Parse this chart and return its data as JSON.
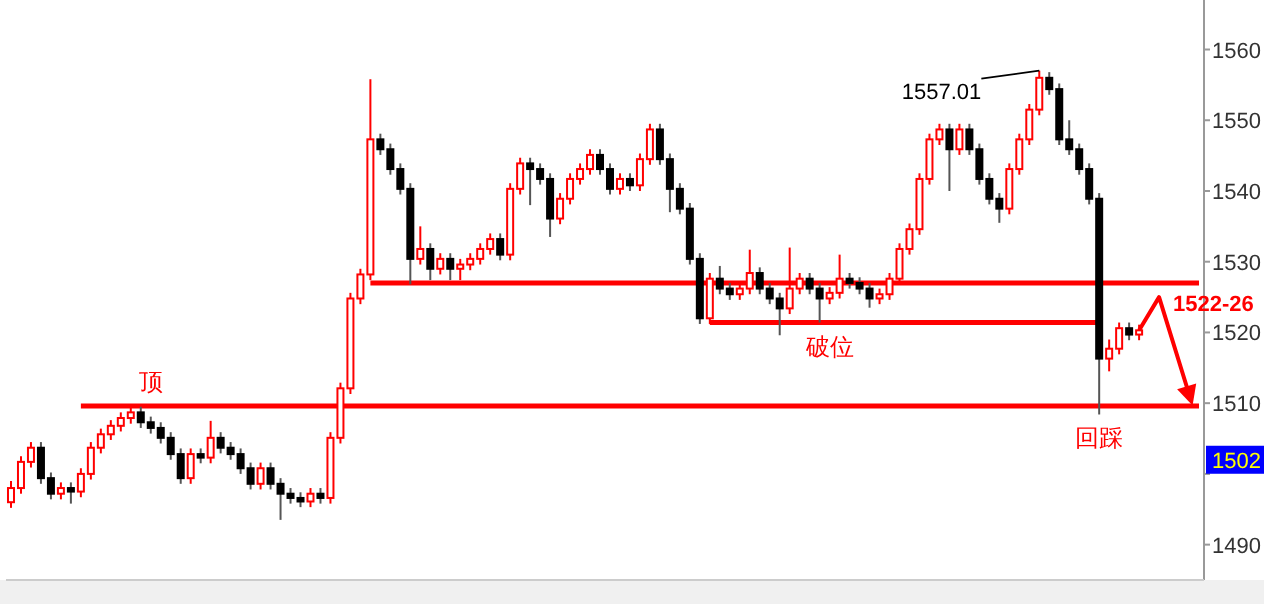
{
  "chart_data": {
    "type": "candlestick",
    "grid": false,
    "categories": [
      null,
      null,
      null,
      null,
      null,
      null,
      null,
      null,
      null,
      null,
      null,
      null,
      null,
      null,
      null,
      null,
      null,
      null,
      null,
      null,
      null,
      null,
      null,
      null,
      null,
      null,
      null,
      null,
      null,
      null,
      null,
      null,
      null,
      null,
      null,
      null,
      null,
      null,
      null,
      null,
      null,
      null,
      null,
      null,
      null,
      null,
      null,
      null,
      null,
      null,
      null,
      null,
      null,
      null,
      null,
      null,
      null,
      null,
      null,
      null,
      null,
      null,
      null,
      null,
      null,
      null,
      null,
      null,
      null,
      null,
      null,
      null,
      null,
      null,
      null,
      null,
      null,
      null,
      null,
      null,
      null,
      null,
      null,
      null,
      null,
      null,
      null,
      null,
      null,
      null,
      null,
      null,
      null,
      null,
      null,
      null,
      null,
      null,
      null,
      null,
      null,
      null,
      null,
      null,
      null,
      null,
      null,
      null,
      null,
      null,
      null,
      null,
      null,
      null,
      null,
      null,
      null,
      null,
      null,
      null
    ],
    "ylim": [
      1485,
      1567
    ],
    "yticks": [
      1490,
      {
        "value": 1500,
        "label": null
      },
      1510,
      1520,
      1530,
      1540,
      1550,
      1560
    ],
    "ohlc": [
      [
        1496.0,
        1499.0,
        1495.2,
        1498.0
      ],
      [
        1498.0,
        1502.5,
        1497.2,
        1501.7
      ],
      [
        1501.7,
        1504.5,
        1500.9,
        1503.7
      ],
      [
        1503.7,
        1504.5,
        1498.6,
        1499.4
      ],
      [
        1499.4,
        1500.2,
        1496.4,
        1497.2
      ],
      [
        1497.2,
        1498.8,
        1496.4,
        1498.0
      ],
      [
        1498.0,
        1498.8,
        1495.8,
        1497.5
      ],
      [
        1497.5,
        1500.8,
        1496.7,
        1500.0
      ],
      [
        1500.0,
        1504.5,
        1499.2,
        1503.7
      ],
      [
        1503.7,
        1506.4,
        1502.9,
        1505.6
      ],
      [
        1505.6,
        1507.6,
        1504.8,
        1506.8
      ],
      [
        1506.8,
        1508.7,
        1506.0,
        1507.9
      ],
      [
        1507.9,
        1509.5,
        1507.1,
        1508.7
      ],
      [
        1508.7,
        1509.5,
        1506.5,
        1507.3
      ],
      [
        1507.3,
        1508.1,
        1505.7,
        1506.5
      ],
      [
        1506.5,
        1507.3,
        1504.3,
        1505.1
      ],
      [
        1505.1,
        1505.9,
        1502.0,
        1502.8
      ],
      [
        1502.8,
        1503.6,
        1498.6,
        1499.4
      ],
      [
        1499.4,
        1503.6,
        1498.6,
        1502.8
      ],
      [
        1502.8,
        1503.6,
        1501.5,
        1502.3
      ],
      [
        1502.3,
        1507.5,
        1501.5,
        1505.1
      ],
      [
        1505.1,
        1505.9,
        1502.9,
        1503.7
      ],
      [
        1503.7,
        1504.5,
        1502.0,
        1502.8
      ],
      [
        1502.8,
        1503.6,
        1500.0,
        1500.8
      ],
      [
        1500.8,
        1501.6,
        1497.8,
        1498.6
      ],
      [
        1498.6,
        1501.6,
        1497.8,
        1500.8
      ],
      [
        1500.8,
        1501.6,
        1497.8,
        1498.6
      ],
      [
        1498.6,
        1499.4,
        1493.5,
        1497.2
      ],
      [
        1497.2,
        1498.0,
        1495.8,
        1496.6
      ],
      [
        1496.6,
        1497.4,
        1495.3,
        1496.1
      ],
      [
        1496.1,
        1498.0,
        1495.3,
        1497.2
      ],
      [
        1497.2,
        1498.0,
        1495.8,
        1496.6
      ],
      [
        1496.6,
        1505.9,
        1495.8,
        1505.1
      ],
      [
        1505.1,
        1512.9,
        1504.3,
        1512.1
      ],
      [
        1512.1,
        1525.6,
        1511.3,
        1524.8
      ],
      [
        1524.8,
        1529.0,
        1524.0,
        1528.2
      ],
      [
        1528.2,
        1555.8,
        1527.4,
        1547.3
      ],
      [
        1547.3,
        1548.1,
        1545.1,
        1545.9
      ],
      [
        1545.9,
        1546.7,
        1542.3,
        1543.1
      ],
      [
        1543.1,
        1543.9,
        1539.5,
        1540.3
      ],
      [
        1540.3,
        1541.1,
        1526.8,
        1530.4
      ],
      [
        1530.4,
        1535.0,
        1529.6,
        1531.8
      ],
      [
        1531.8,
        1532.6,
        1527.4,
        1529.0
      ],
      [
        1529.0,
        1531.2,
        1528.2,
        1530.4
      ],
      [
        1530.4,
        1531.2,
        1527.4,
        1529.0
      ],
      [
        1529.0,
        1530.4,
        1527.4,
        1529.6
      ],
      [
        1529.6,
        1531.2,
        1528.8,
        1530.4
      ],
      [
        1530.4,
        1532.6,
        1529.6,
        1531.8
      ],
      [
        1531.8,
        1534.0,
        1531.0,
        1533.2
      ],
      [
        1533.2,
        1534.0,
        1530.2,
        1531.0
      ],
      [
        1531.0,
        1541.1,
        1530.2,
        1540.3
      ],
      [
        1540.3,
        1544.7,
        1539.5,
        1543.9
      ],
      [
        1543.9,
        1544.7,
        1538.0,
        1543.1
      ],
      [
        1543.1,
        1543.9,
        1540.9,
        1541.7
      ],
      [
        1541.7,
        1542.5,
        1533.5,
        1536.1
      ],
      [
        1536.1,
        1539.7,
        1535.3,
        1538.9
      ],
      [
        1538.9,
        1542.5,
        1538.1,
        1541.7
      ],
      [
        1541.7,
        1543.9,
        1540.9,
        1543.1
      ],
      [
        1543.1,
        1545.9,
        1542.3,
        1545.1
      ],
      [
        1545.1,
        1545.9,
        1542.3,
        1543.1
      ],
      [
        1543.1,
        1543.9,
        1539.5,
        1540.3
      ],
      [
        1540.3,
        1542.5,
        1539.5,
        1541.7
      ],
      [
        1541.7,
        1542.5,
        1540.0,
        1540.8
      ],
      [
        1540.8,
        1545.3,
        1540.0,
        1544.5
      ],
      [
        1544.5,
        1549.5,
        1543.7,
        1548.7
      ],
      [
        1548.7,
        1549.5,
        1543.7,
        1544.5
      ],
      [
        1544.5,
        1545.3,
        1537.0,
        1540.3
      ],
      [
        1540.3,
        1541.1,
        1536.7,
        1537.5
      ],
      [
        1537.5,
        1538.3,
        1529.6,
        1530.4
      ],
      [
        1530.4,
        1531.2,
        1521.2,
        1522.0
      ],
      [
        1522.0,
        1528.4,
        1521.2,
        1527.6
      ],
      [
        1527.6,
        1529.4,
        1525.4,
        1526.2
      ],
      [
        1526.2,
        1527.0,
        1524.6,
        1525.4
      ],
      [
        1525.4,
        1527.0,
        1524.6,
        1526.2
      ],
      [
        1526.2,
        1531.7,
        1525.4,
        1528.4
      ],
      [
        1528.4,
        1529.2,
        1525.4,
        1526.2
      ],
      [
        1526.2,
        1527.0,
        1524.0,
        1524.8
      ],
      [
        1524.8,
        1525.6,
        1519.6,
        1523.4
      ],
      [
        1523.4,
        1532.0,
        1522.6,
        1526.2
      ],
      [
        1526.2,
        1528.4,
        1525.4,
        1527.6
      ],
      [
        1527.6,
        1528.4,
        1525.4,
        1526.2
      ],
      [
        1526.2,
        1527.0,
        1521.4,
        1524.8
      ],
      [
        1524.8,
        1526.4,
        1524.0,
        1525.6
      ],
      [
        1525.6,
        1531.0,
        1524.8,
        1527.6
      ],
      [
        1527.6,
        1528.4,
        1526.2,
        1527.0
      ],
      [
        1527.0,
        1527.8,
        1525.4,
        1526.2
      ],
      [
        1526.2,
        1527.0,
        1523.5,
        1524.8
      ],
      [
        1524.8,
        1526.2,
        1524.0,
        1525.4
      ],
      [
        1525.4,
        1528.4,
        1524.6,
        1527.6
      ],
      [
        1527.6,
        1532.6,
        1526.8,
        1531.8
      ],
      [
        1531.8,
        1535.4,
        1531.0,
        1534.6
      ],
      [
        1534.6,
        1542.5,
        1533.8,
        1541.7
      ],
      [
        1541.7,
        1548.1,
        1540.9,
        1547.3
      ],
      [
        1547.3,
        1549.5,
        1546.5,
        1548.7
      ],
      [
        1548.7,
        1549.5,
        1540.0,
        1545.9
      ],
      [
        1545.9,
        1549.5,
        1545.1,
        1548.7
      ],
      [
        1548.7,
        1549.5,
        1545.1,
        1545.9
      ],
      [
        1545.9,
        1546.7,
        1540.9,
        1541.7
      ],
      [
        1541.7,
        1542.5,
        1538.1,
        1538.9
      ],
      [
        1538.9,
        1539.7,
        1535.5,
        1537.5
      ],
      [
        1537.5,
        1543.9,
        1536.7,
        1543.1
      ],
      [
        1543.1,
        1548.1,
        1542.3,
        1547.3
      ],
      [
        1547.3,
        1552.3,
        1546.5,
        1551.5
      ],
      [
        1551.5,
        1557.01,
        1550.7,
        1556.0
      ],
      [
        1556.0,
        1556.8,
        1553.6,
        1554.4
      ],
      [
        1554.4,
        1555.2,
        1546.5,
        1547.3
      ],
      [
        1547.3,
        1550.0,
        1545.1,
        1545.9
      ],
      [
        1545.9,
        1546.7,
        1542.3,
        1543.1
      ],
      [
        1543.1,
        1543.9,
        1538.1,
        1538.9
      ],
      [
        1538.9,
        1539.7,
        1508.4,
        1516.3
      ],
      [
        1516.3,
        1519.0,
        1514.5,
        1517.7
      ],
      [
        1517.7,
        1521.4,
        1516.9,
        1520.6
      ],
      [
        1520.6,
        1521.4,
        1518.9,
        1519.7
      ],
      [
        1519.7,
        1521.1,
        1518.9,
        1520.3
      ],
      null,
      null,
      null,
      null,
      null,
      null
    ],
    "series": [
      {
        "type": "line",
        "color": "#ff0000",
        "values": [
          null,
          null,
          null,
          null,
          null,
          null,
          null,
          null,
          null,
          null,
          null,
          null,
          null,
          null,
          null,
          null,
          null,
          null,
          null,
          null,
          null,
          null,
          null,
          null,
          null,
          null,
          null,
          null,
          null,
          null,
          null,
          null,
          null,
          null,
          null,
          null,
          1527.0,
          1527.0,
          1527.0,
          1527.0,
          1527.0,
          1527.0,
          1527.0,
          1527.0,
          1527.0,
          1527.0,
          1527.0,
          1527.0,
          1527.0,
          1527.0,
          1527.0,
          1527.0,
          1527.0,
          1527.0,
          1527.0,
          1527.0,
          1527.0,
          1527.0,
          1527.0,
          1527.0,
          1527.0,
          1527.0,
          1527.0,
          1527.0,
          1527.0,
          1527.0,
          1527.0,
          1527.0,
          1527.0,
          1527.0,
          1527.0,
          1527.0,
          1527.0,
          1527.0,
          1527.0,
          1527.0,
          1527.0,
          1527.0,
          1527.0,
          1527.0,
          1527.0,
          1527.0,
          1527.0,
          1527.0,
          1527.0,
          1527.0,
          1527.0,
          1527.0,
          1527.0,
          1527.0,
          1527.0,
          1527.0,
          1527.0,
          1527.0,
          1527.0,
          1527.0,
          1527.0,
          1527.0,
          1527.0,
          1527.0,
          1527.0,
          1527.0,
          1527.0,
          1527.0,
          1527.0,
          1527.0,
          1527.0,
          1527.0,
          1527.0,
          1527.0,
          1527.0,
          1527.0,
          1527.0,
          1527.0,
          1527.0,
          1527.0,
          1527.0,
          1527.0,
          1527.0,
          1527.0
        ]
      },
      {
        "type": "line",
        "color": "#ff0000",
        "values": [
          null,
          null,
          null,
          null,
          null,
          null,
          null,
          null,
          null,
          null,
          null,
          null,
          null,
          null,
          null,
          null,
          null,
          null,
          null,
          null,
          null,
          null,
          null,
          null,
          null,
          null,
          null,
          null,
          null,
          null,
          null,
          null,
          null,
          null,
          null,
          null,
          null,
          null,
          null,
          null,
          null,
          null,
          null,
          null,
          null,
          null,
          null,
          null,
          null,
          null,
          null,
          null,
          null,
          null,
          null,
          null,
          null,
          null,
          null,
          null,
          null,
          null,
          null,
          null,
          null,
          null,
          null,
          null,
          null,
          null,
          1521.4,
          1521.4,
          1521.4,
          1521.4,
          1521.4,
          1521.4,
          1521.4,
          1521.4,
          1521.4,
          1521.4,
          1521.4,
          1521.4,
          1521.4,
          1521.4,
          1521.4,
          1521.4,
          1521.4,
          1521.4,
          1521.4,
          1521.4,
          1521.4,
          1521.4,
          1521.4,
          1521.4,
          1521.4,
          1521.4,
          1521.4,
          1521.4,
          1521.4,
          1521.4,
          1521.4,
          1521.4,
          1521.4,
          1521.4,
          1521.4,
          1521.4,
          1521.4,
          1521.4,
          1521.4,
          1521.4,
          null,
          null,
          null,
          null,
          null,
          null,
          null,
          null,
          null,
          null
        ]
      },
      {
        "type": "line",
        "color": "#ff0000",
        "values": [
          null,
          null,
          null,
          null,
          null,
          null,
          null,
          1509.6,
          1509.6,
          1509.6,
          1509.6,
          1509.6,
          1509.6,
          1509.6,
          1509.6,
          1509.6,
          1509.6,
          1509.6,
          1509.6,
          1509.6,
          1509.6,
          1509.6,
          1509.6,
          1509.6,
          1509.6,
          1509.6,
          1509.6,
          1509.6,
          1509.6,
          1509.6,
          1509.6,
          1509.6,
          1509.6,
          1509.6,
          1509.6,
          1509.6,
          1509.6,
          1509.6,
          1509.6,
          1509.6,
          1509.6,
          1509.6,
          1509.6,
          1509.6,
          1509.6,
          1509.6,
          1509.6,
          1509.6,
          1509.6,
          1509.6,
          1509.6,
          1509.6,
          1509.6,
          1509.6,
          1509.6,
          1509.6,
          1509.6,
          1509.6,
          1509.6,
          1509.6,
          1509.6,
          1509.6,
          1509.6,
          1509.6,
          1509.6,
          1509.6,
          1509.6,
          1509.6,
          1509.6,
          1509.6,
          1509.6,
          1509.6,
          1509.6,
          1509.6,
          1509.6,
          1509.6,
          1509.6,
          1509.6,
          1509.6,
          1509.6,
          1509.6,
          1509.6,
          1509.6,
          1509.6,
          1509.6,
          1509.6,
          1509.6,
          1509.6,
          1509.6,
          1509.6,
          1509.6,
          1509.6,
          1509.6,
          1509.6,
          1509.6,
          1509.6,
          1509.6,
          1509.6,
          1509.6,
          1509.6,
          1509.6,
          1509.6,
          1509.6,
          1509.6,
          1509.6,
          1509.6,
          1509.6,
          1509.6,
          1509.6,
          1509.6,
          1509.6,
          1509.6,
          1509.6,
          1509.6,
          1509.6,
          1509.6,
          1509.6,
          1509.6,
          1509.6,
          1509.6
        ]
      }
    ],
    "annotations": [
      {
        "text": "顶",
        "y": 1509.6
      },
      {
        "text": "破位",
        "y": 1521.4
      },
      {
        "text": "回踩",
        "y": 1508.4
      },
      "1557.01",
      "1522-26",
      {
        "text": "1502",
        "y": 1502
      }
    ]
  }
}
